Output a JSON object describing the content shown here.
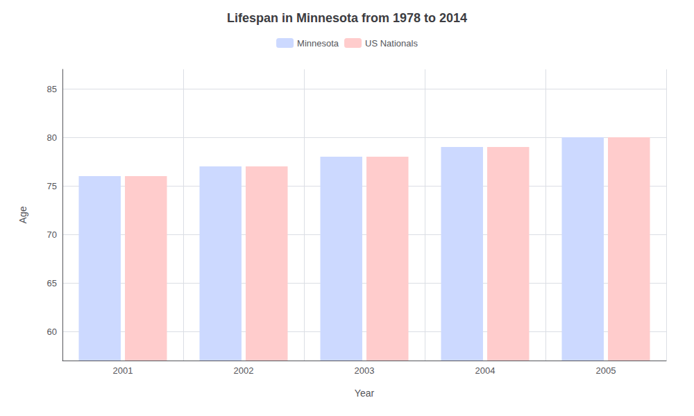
{
  "chart_data": {
    "type": "bar",
    "title": "Lifespan in Minnesota from 1978 to 2014",
    "xlabel": "Year",
    "ylabel": "Age",
    "categories": [
      "2001",
      "2002",
      "2003",
      "2004",
      "2005"
    ],
    "series": [
      {
        "name": "Minnesota",
        "color": "#ccd9ff",
        "values": [
          76,
          77,
          78,
          79,
          80
        ]
      },
      {
        "name": "US Nationals",
        "color": "#ffcccc",
        "values": [
          76,
          77,
          78,
          79,
          80
        ]
      }
    ],
    "ylim": [
      57,
      87
    ],
    "yticks": [
      60,
      65,
      70,
      75,
      80,
      85
    ],
    "grid": true,
    "legend": "top"
  }
}
